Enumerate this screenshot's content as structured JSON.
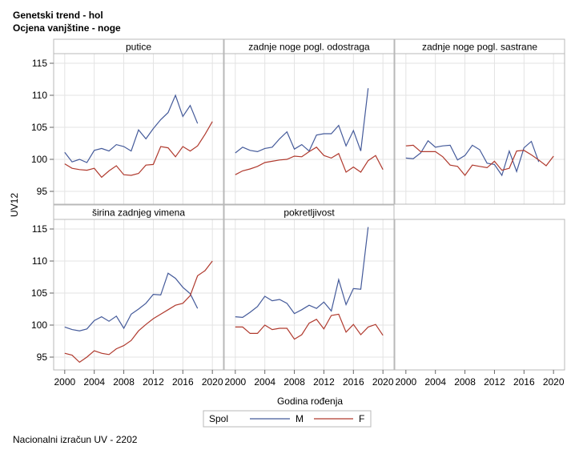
{
  "header": {
    "title": "Genetski trend - hol",
    "subtitle": "Ocjena vanjštine - noge"
  },
  "footer": {
    "note": "Nacionalni izračun UV - 2202"
  },
  "axes": {
    "xlabel": "Godina rođenja",
    "ylabel": "UV12"
  },
  "legend": {
    "title": "Spol",
    "entries": [
      "M",
      "F"
    ]
  },
  "colors": {
    "M": "#445a9a",
    "F": "#b03a2e"
  },
  "chart_data": {
    "type": "line",
    "layout": "panel-grid 2x3",
    "xlim": [
      1998.5,
      2021.5
    ],
    "xticks": [
      2000,
      2004,
      2008,
      2012,
      2016,
      2020
    ],
    "ylim": [
      93,
      116.5
    ],
    "yticks": [
      95,
      100,
      105,
      110,
      115
    ],
    "grid": true,
    "legend_position": "bottom",
    "panels": [
      {
        "title": "putice",
        "series": [
          {
            "name": "M",
            "x": [
              2000,
              2001,
              2002,
              2003,
              2004,
              2005,
              2006,
              2007,
              2008,
              2009,
              2010,
              2011,
              2012,
              2013,
              2014,
              2015,
              2016,
              2017,
              2018
            ],
            "values": [
              101.1,
              99.6,
              100.0,
              99.5,
              101.4,
              101.7,
              101.3,
              102.3,
              102.0,
              101.3,
              104.6,
              103.2,
              104.8,
              106.2,
              107.3,
              110.0,
              106.7,
              108.4,
              105.6
            ]
          },
          {
            "name": "F",
            "x": [
              2000,
              2001,
              2002,
              2003,
              2004,
              2005,
              2006,
              2007,
              2008,
              2009,
              2010,
              2011,
              2012,
              2013,
              2014,
              2015,
              2016,
              2017,
              2018,
              2019,
              2020
            ],
            "values": [
              99.3,
              98.6,
              98.4,
              98.3,
              98.6,
              97.2,
              98.2,
              99.0,
              97.6,
              97.5,
              97.8,
              99.1,
              99.2,
              102.0,
              101.8,
              100.4,
              102.0,
              101.3,
              102.1,
              103.9,
              105.9
            ]
          }
        ]
      },
      {
        "title": "zadnje noge pogl. odostraga",
        "series": [
          {
            "name": "M",
            "x": [
              2000,
              2001,
              2002,
              2003,
              2004,
              2005,
              2006,
              2007,
              2008,
              2009,
              2010,
              2011,
              2012,
              2013,
              2014,
              2015,
              2016,
              2017,
              2018
            ],
            "values": [
              101.0,
              101.9,
              101.4,
              101.2,
              101.7,
              101.9,
              103.2,
              104.3,
              101.6,
              102.3,
              101.3,
              103.8,
              104.0,
              104.0,
              105.3,
              102.1,
              104.5,
              101.3,
              111.1
            ]
          },
          {
            "name": "F",
            "x": [
              2000,
              2001,
              2002,
              2003,
              2004,
              2005,
              2006,
              2007,
              2008,
              2009,
              2010,
              2011,
              2012,
              2013,
              2014,
              2015,
              2016,
              2017,
              2018,
              2019,
              2020
            ],
            "values": [
              97.6,
              98.2,
              98.5,
              98.9,
              99.5,
              99.7,
              99.9,
              100.0,
              100.5,
              100.4,
              101.2,
              101.9,
              100.6,
              100.2,
              100.9,
              98.0,
              98.8,
              98.0,
              99.8,
              100.6,
              98.4
            ]
          }
        ]
      },
      {
        "title": "zadnje noge pogl. sastrane",
        "series": [
          {
            "name": "M",
            "x": [
              2000,
              2001,
              2002,
              2003,
              2004,
              2005,
              2006,
              2007,
              2008,
              2009,
              2010,
              2011,
              2012,
              2013,
              2014,
              2015,
              2016,
              2017,
              2018
            ],
            "values": [
              100.2,
              100.1,
              101.0,
              102.9,
              101.9,
              102.1,
              102.2,
              99.9,
              100.6,
              102.2,
              101.5,
              99.4,
              99.2,
              97.5,
              101.3,
              98.1,
              101.8,
              102.8,
              99.6
            ]
          },
          {
            "name": "F",
            "x": [
              2000,
              2001,
              2002,
              2003,
              2004,
              2005,
              2006,
              2007,
              2008,
              2009,
              2010,
              2011,
              2012,
              2013,
              2014,
              2015,
              2016,
              2017,
              2018,
              2019,
              2020
            ],
            "values": [
              102.1,
              102.2,
              101.2,
              101.2,
              101.2,
              100.4,
              99.1,
              98.9,
              97.5,
              99.1,
              98.9,
              98.7,
              99.7,
              98.3,
              98.6,
              101.3,
              101.4,
              100.7,
              99.9,
              99.0,
              100.5
            ]
          }
        ]
      },
      {
        "title": "širina zadnjeg vimena",
        "series": [
          {
            "name": "M",
            "x": [
              2000,
              2001,
              2002,
              2003,
              2004,
              2005,
              2006,
              2007,
              2008,
              2009,
              2010,
              2011,
              2012,
              2013,
              2014,
              2015,
              2016,
              2017,
              2018
            ],
            "values": [
              99.7,
              99.3,
              99.1,
              99.4,
              100.7,
              101.3,
              100.6,
              101.4,
              99.5,
              101.7,
              102.5,
              103.4,
              104.8,
              104.7,
              108.1,
              107.3,
              105.9,
              104.9,
              102.6
            ]
          },
          {
            "name": "F",
            "x": [
              2000,
              2001,
              2002,
              2003,
              2004,
              2005,
              2006,
              2007,
              2008,
              2009,
              2010,
              2011,
              2012,
              2013,
              2014,
              2015,
              2016,
              2017,
              2018,
              2019,
              2020
            ],
            "values": [
              95.6,
              95.3,
              94.2,
              95.0,
              96.0,
              95.6,
              95.4,
              96.3,
              96.8,
              97.6,
              99.1,
              100.1,
              101.0,
              101.7,
              102.4,
              103.1,
              103.4,
              104.6,
              107.7,
              108.5,
              110.0
            ]
          }
        ]
      },
      {
        "title": "pokretljivost",
        "series": [
          {
            "name": "M",
            "x": [
              2000,
              2001,
              2002,
              2003,
              2004,
              2005,
              2006,
              2007,
              2008,
              2009,
              2010,
              2011,
              2012,
              2013,
              2014,
              2015,
              2016,
              2017,
              2018
            ],
            "values": [
              101.3,
              101.2,
              102.0,
              102.9,
              104.5,
              103.8,
              104.0,
              103.4,
              101.8,
              102.4,
              103.1,
              102.6,
              103.6,
              102.2,
              107.1,
              103.2,
              105.7,
              105.6,
              115.3
            ]
          },
          {
            "name": "F",
            "x": [
              2000,
              2001,
              2002,
              2003,
              2004,
              2005,
              2006,
              2007,
              2008,
              2009,
              2010,
              2011,
              2012,
              2013,
              2014,
              2015,
              2016,
              2017,
              2018,
              2019,
              2020
            ],
            "values": [
              99.7,
              99.7,
              98.7,
              98.7,
              100.0,
              99.3,
              99.5,
              99.5,
              97.8,
              98.5,
              100.3,
              100.9,
              99.4,
              101.5,
              101.7,
              98.9,
              100.1,
              98.5,
              99.7,
              100.1,
              98.4
            ]
          }
        ]
      }
    ]
  }
}
